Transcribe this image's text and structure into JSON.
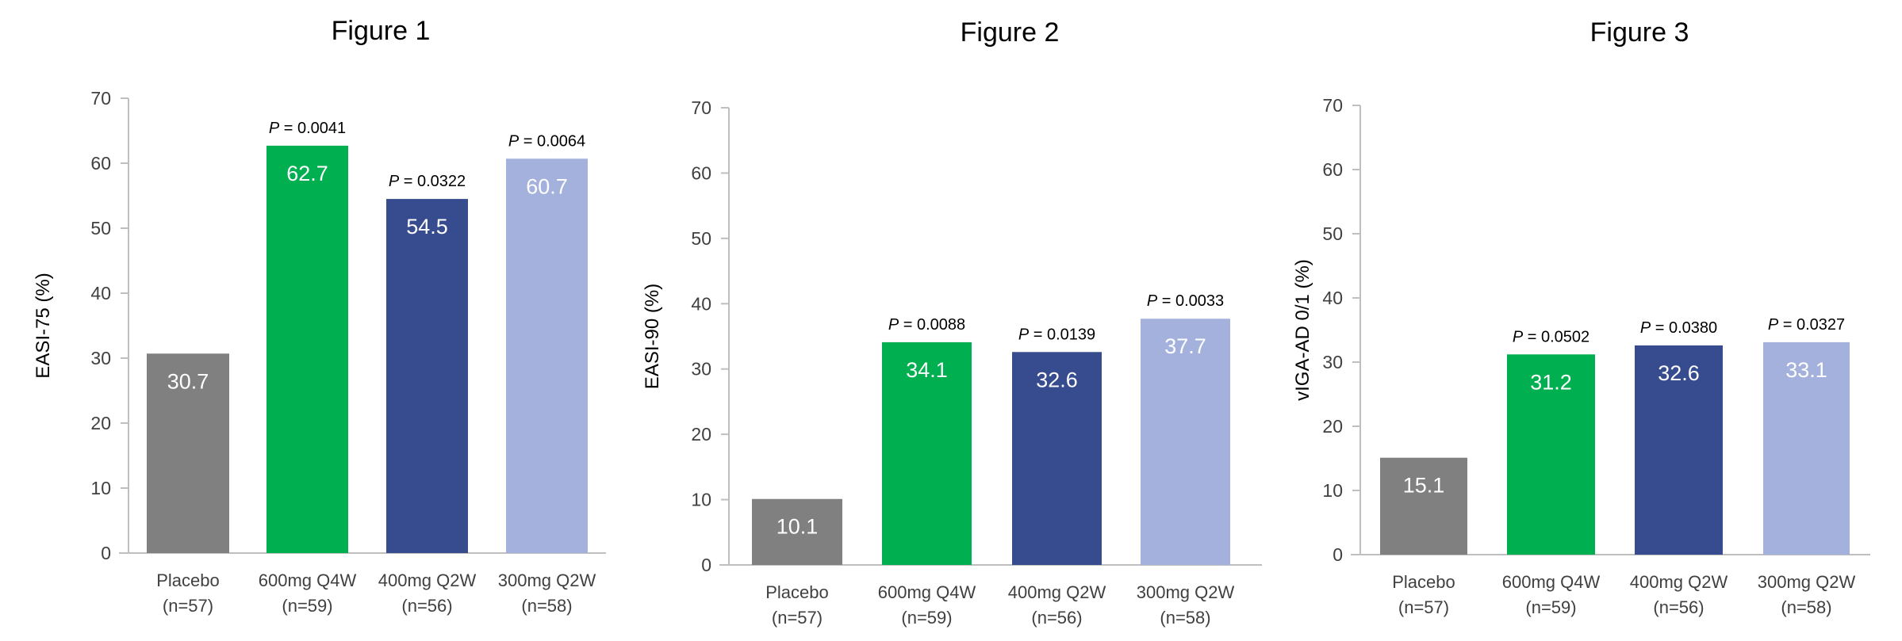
{
  "colors": {
    "Placebo": "#808080",
    "600mg Q4W": "#00b050",
    "400mg Q2W": "#374b8f",
    "300mg Q2W": "#a4b1dc",
    "axis": "#bfbfbf"
  },
  "chart_data": [
    {
      "type": "bar",
      "title": "Figure 1",
      "ylabel": "EASI-75 (%)",
      "ylim": [
        0,
        70
      ],
      "yticks": [
        0,
        10,
        20,
        30,
        40,
        50,
        60,
        70
      ],
      "grid": false,
      "categories": [
        "Placebo",
        "600mg Q4W",
        "400mg Q2W",
        "300mg Q2W"
      ],
      "category_n": [
        "(n=57)",
        "(n=59)",
        "(n=56)",
        "(n=58)"
      ],
      "values": [
        30.7,
        62.7,
        54.5,
        60.7
      ],
      "value_labels": [
        "30.7",
        "62.7",
        "54.5",
        "60.7"
      ],
      "p_values": [
        null,
        "0.0041",
        "0.0322",
        "0.0064"
      ]
    },
    {
      "type": "bar",
      "title": "Figure 2",
      "ylabel": "EASI-90 (%)",
      "ylim": [
        0,
        70
      ],
      "yticks": [
        0,
        10,
        20,
        30,
        40,
        50,
        60,
        70
      ],
      "grid": false,
      "categories": [
        "Placebo",
        "600mg Q4W",
        "400mg Q2W",
        "300mg Q2W"
      ],
      "category_n": [
        "(n=57)",
        "(n=59)",
        "(n=56)",
        "(n=58)"
      ],
      "values": [
        10.1,
        34.1,
        32.6,
        37.7
      ],
      "value_labels": [
        "10.1",
        "34.1",
        "32.6",
        "37.7"
      ],
      "p_values": [
        null,
        "0.0088",
        "0.0139",
        "0.0033"
      ]
    },
    {
      "type": "bar",
      "title": "Figure 3",
      "ylabel": "vIGA-AD 0/1 (%)",
      "ylim": [
        0,
        70
      ],
      "yticks": [
        0,
        10,
        20,
        30,
        40,
        50,
        60,
        70
      ],
      "grid": false,
      "categories": [
        "Placebo",
        "600mg Q4W",
        "400mg Q2W",
        "300mg Q2W"
      ],
      "category_n": [
        "(n=57)",
        "(n=59)",
        "(n=56)",
        "(n=58)"
      ],
      "values": [
        15.1,
        31.2,
        32.6,
        33.1
      ],
      "value_labels": [
        "15.1",
        "31.2",
        "32.6",
        "33.1"
      ],
      "p_values": [
        null,
        "0.0502",
        "0.0380",
        "0.0327"
      ]
    }
  ]
}
